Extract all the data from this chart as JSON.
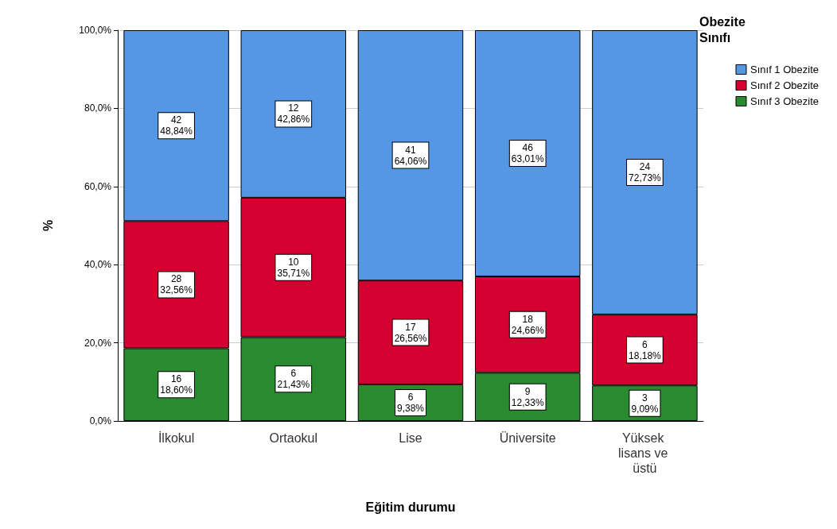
{
  "chart_data": {
    "type": "bar",
    "stacked": true,
    "xlabel": "Eğitim durumu",
    "ylabel": "%",
    "legend_title": "Obezite Sınıfı",
    "categories": [
      "İlkokul",
      "Ortaokul",
      "Lise",
      "Üniversite",
      "Yüksek lisans ve üstü"
    ],
    "series": [
      {
        "name": "Sınıf 3 Obezite",
        "color": "#2a8a2f",
        "values": [
          18.6,
          21.43,
          9.38,
          12.33,
          9.09
        ],
        "value_labels": [
          "16\n18,60%",
          "6\n21,43%",
          "6\n9,38%",
          "9\n12,33%",
          "3\n9,09%"
        ]
      },
      {
        "name": "Sınıf 2 Obezite",
        "color": "#d5002f",
        "values": [
          32.56,
          35.71,
          26.56,
          24.66,
          18.18
        ],
        "value_labels": [
          "28\n32,56%",
          "10\n35,71%",
          "17\n26,56%",
          "18\n24,66%",
          "6\n18,18%"
        ]
      },
      {
        "name": "Sınıf 1 Obezite",
        "color": "#5597e4",
        "values": [
          48.84,
          42.86,
          64.06,
          63.01,
          72.73
        ],
        "value_labels": [
          "42\n48,84%",
          "12\n42,86%",
          "41\n64,06%",
          "46\n63,01%",
          "24\n72,73%"
        ]
      }
    ],
    "ylim": [
      0,
      100
    ],
    "yticks": [
      {
        "value": 0,
        "label": "0,0%"
      },
      {
        "value": 20,
        "label": "20,0%"
      },
      {
        "value": 40,
        "label": "40,0%"
      },
      {
        "value": 60,
        "label": "60,0%"
      },
      {
        "value": 80,
        "label": "80,0%"
      },
      {
        "value": 100,
        "label": "100,0%"
      }
    ],
    "grid": "y",
    "legend": "top right"
  }
}
